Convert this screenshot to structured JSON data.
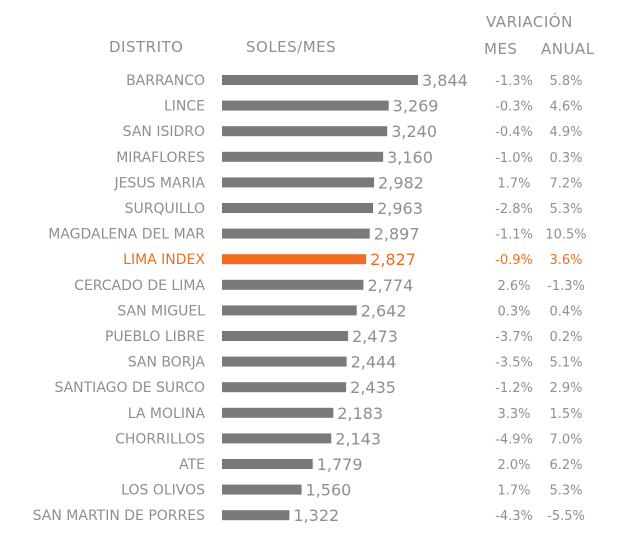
{
  "headers": {
    "distrito": "DISTRITO",
    "soles": "SOLES/MES",
    "variacion": "VARIACIÓN",
    "mes": "MES",
    "anual": "ANUAL"
  },
  "colors": {
    "bar": "#7a7a7a",
    "highlight": "#f26d21",
    "text": "#8f8f8f"
  },
  "chart_data": {
    "type": "bar",
    "orientation": "horizontal",
    "title": "",
    "xlabel": "SOLES/MES",
    "ylabel": "DISTRITO",
    "xlim": [
      0,
      3844
    ],
    "highlight": "LIMA INDEX",
    "categories": [
      "BARRANCO",
      "LINCE",
      "SAN ISIDRO",
      "MIRAFLORES",
      "JESUS MARIA",
      "SURQUILLO",
      "MAGDALENA DEL MAR",
      "LIMA INDEX",
      "CERCADO DE LIMA",
      "SAN MIGUEL",
      "PUEBLO LIBRE",
      "SAN BORJA",
      "SANTIAGO DE SURCO",
      "LA MOLINA",
      "CHORRILLOS",
      "ATE",
      "LOS OLIVOS",
      "SAN MARTIN DE PORRES"
    ],
    "values": [
      3844,
      3269,
      3240,
      3160,
      2982,
      2963,
      2897,
      2827,
      2774,
      2642,
      2473,
      2444,
      2435,
      2183,
      2143,
      1779,
      1560,
      1322
    ],
    "value_labels": [
      "3,844",
      "3,269",
      "3,240",
      "3,160",
      "2,982",
      "2,963",
      "2,897",
      "2,827",
      "2,774",
      "2,642",
      "2,473",
      "2,444",
      "2,435",
      "2,183",
      "2,143",
      "1,779",
      "1,560",
      "1,322"
    ],
    "variacion_mes": [
      "-1.3%",
      "-0.3%",
      "-0.4%",
      "-1.0%",
      "1.7%",
      "-2.8%",
      "-1.1%",
      "-0.9%",
      "2.6%",
      "0.3%",
      "-3.7%",
      "-3.5%",
      "-1.2%",
      "3.3%",
      "-4.9%",
      "2.0%",
      "1.7%",
      "-4.3%"
    ],
    "variacion_anual": [
      "5.8%",
      "4.6%",
      "4.9%",
      "0.3%",
      "7.2%",
      "5.3%",
      "10.5%",
      "3.6%",
      "-1.3%",
      "0.4%",
      "0.2%",
      "5.1%",
      "2.9%",
      "1.5%",
      "7.0%",
      "6.2%",
      "5.3%",
      "-5.5%"
    ]
  }
}
